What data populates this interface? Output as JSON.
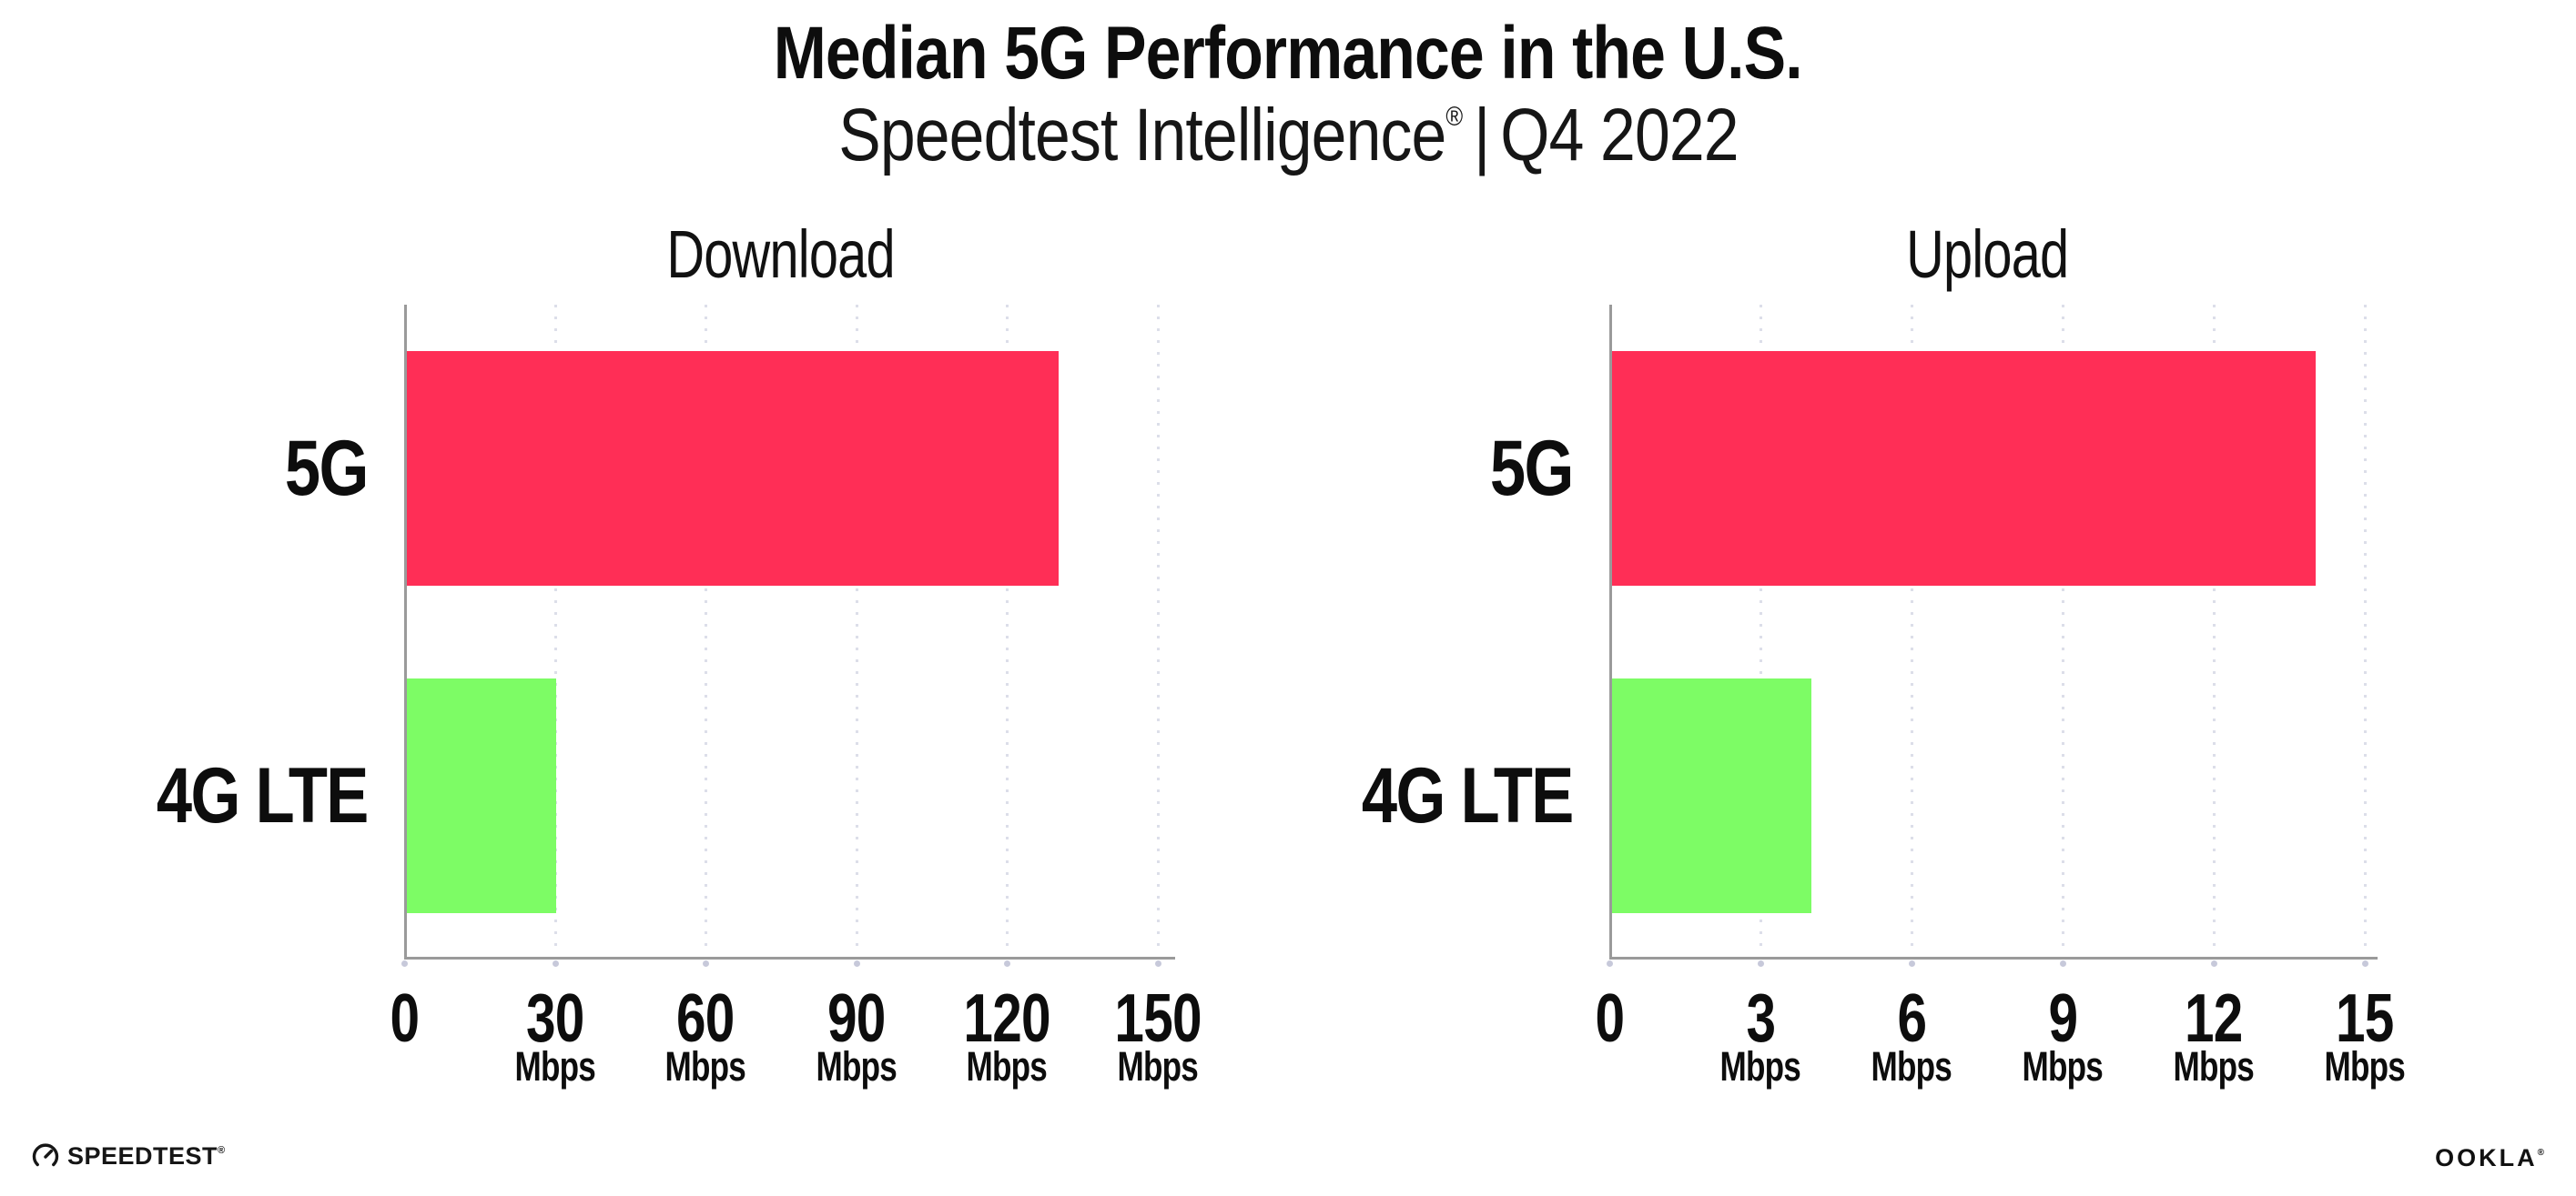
{
  "header": {
    "title": "Median 5G Performance in the U.S.",
    "subtitle_brand": "Speedtest Intelligence",
    "subtitle_reg": "®",
    "subtitle_sep": "|",
    "subtitle_period": "Q4 2022"
  },
  "footer": {
    "speedtest_label": "SPEEDTEST",
    "speedtest_reg": "®",
    "ookla_label": "OOKLA",
    "ookla_reg": "®"
  },
  "colors": {
    "bar_5g": "#ff2e56",
    "bar_4g_lte": "#7dfc65",
    "axis_line": "#9a9a9a",
    "gridline_dot": "#dcdee9",
    "tick_dot": "#c7c9da",
    "text": "#0d0d0d"
  },
  "chart_data": [
    {
      "type": "bar",
      "orientation": "horizontal",
      "title": "Download",
      "categories": [
        "5G",
        "4G LTE"
      ],
      "values": [
        130,
        30
      ],
      "unit": "Mbps",
      "xlim": [
        0,
        150
      ],
      "xticks": [
        0,
        30,
        60,
        90,
        120,
        150
      ],
      "grid": "dotted-vertical",
      "legend": "none",
      "bar_colors": [
        "#ff2e56",
        "#7dfc65"
      ]
    },
    {
      "type": "bar",
      "orientation": "horizontal",
      "title": "Upload",
      "categories": [
        "5G",
        "4G LTE"
      ],
      "values": [
        14,
        4
      ],
      "unit": "Mbps",
      "xlim": [
        0,
        15
      ],
      "xticks": [
        0,
        3,
        6,
        9,
        12,
        15
      ],
      "grid": "dotted-vertical",
      "legend": "none",
      "bar_colors": [
        "#ff2e56",
        "#7dfc65"
      ]
    }
  ]
}
